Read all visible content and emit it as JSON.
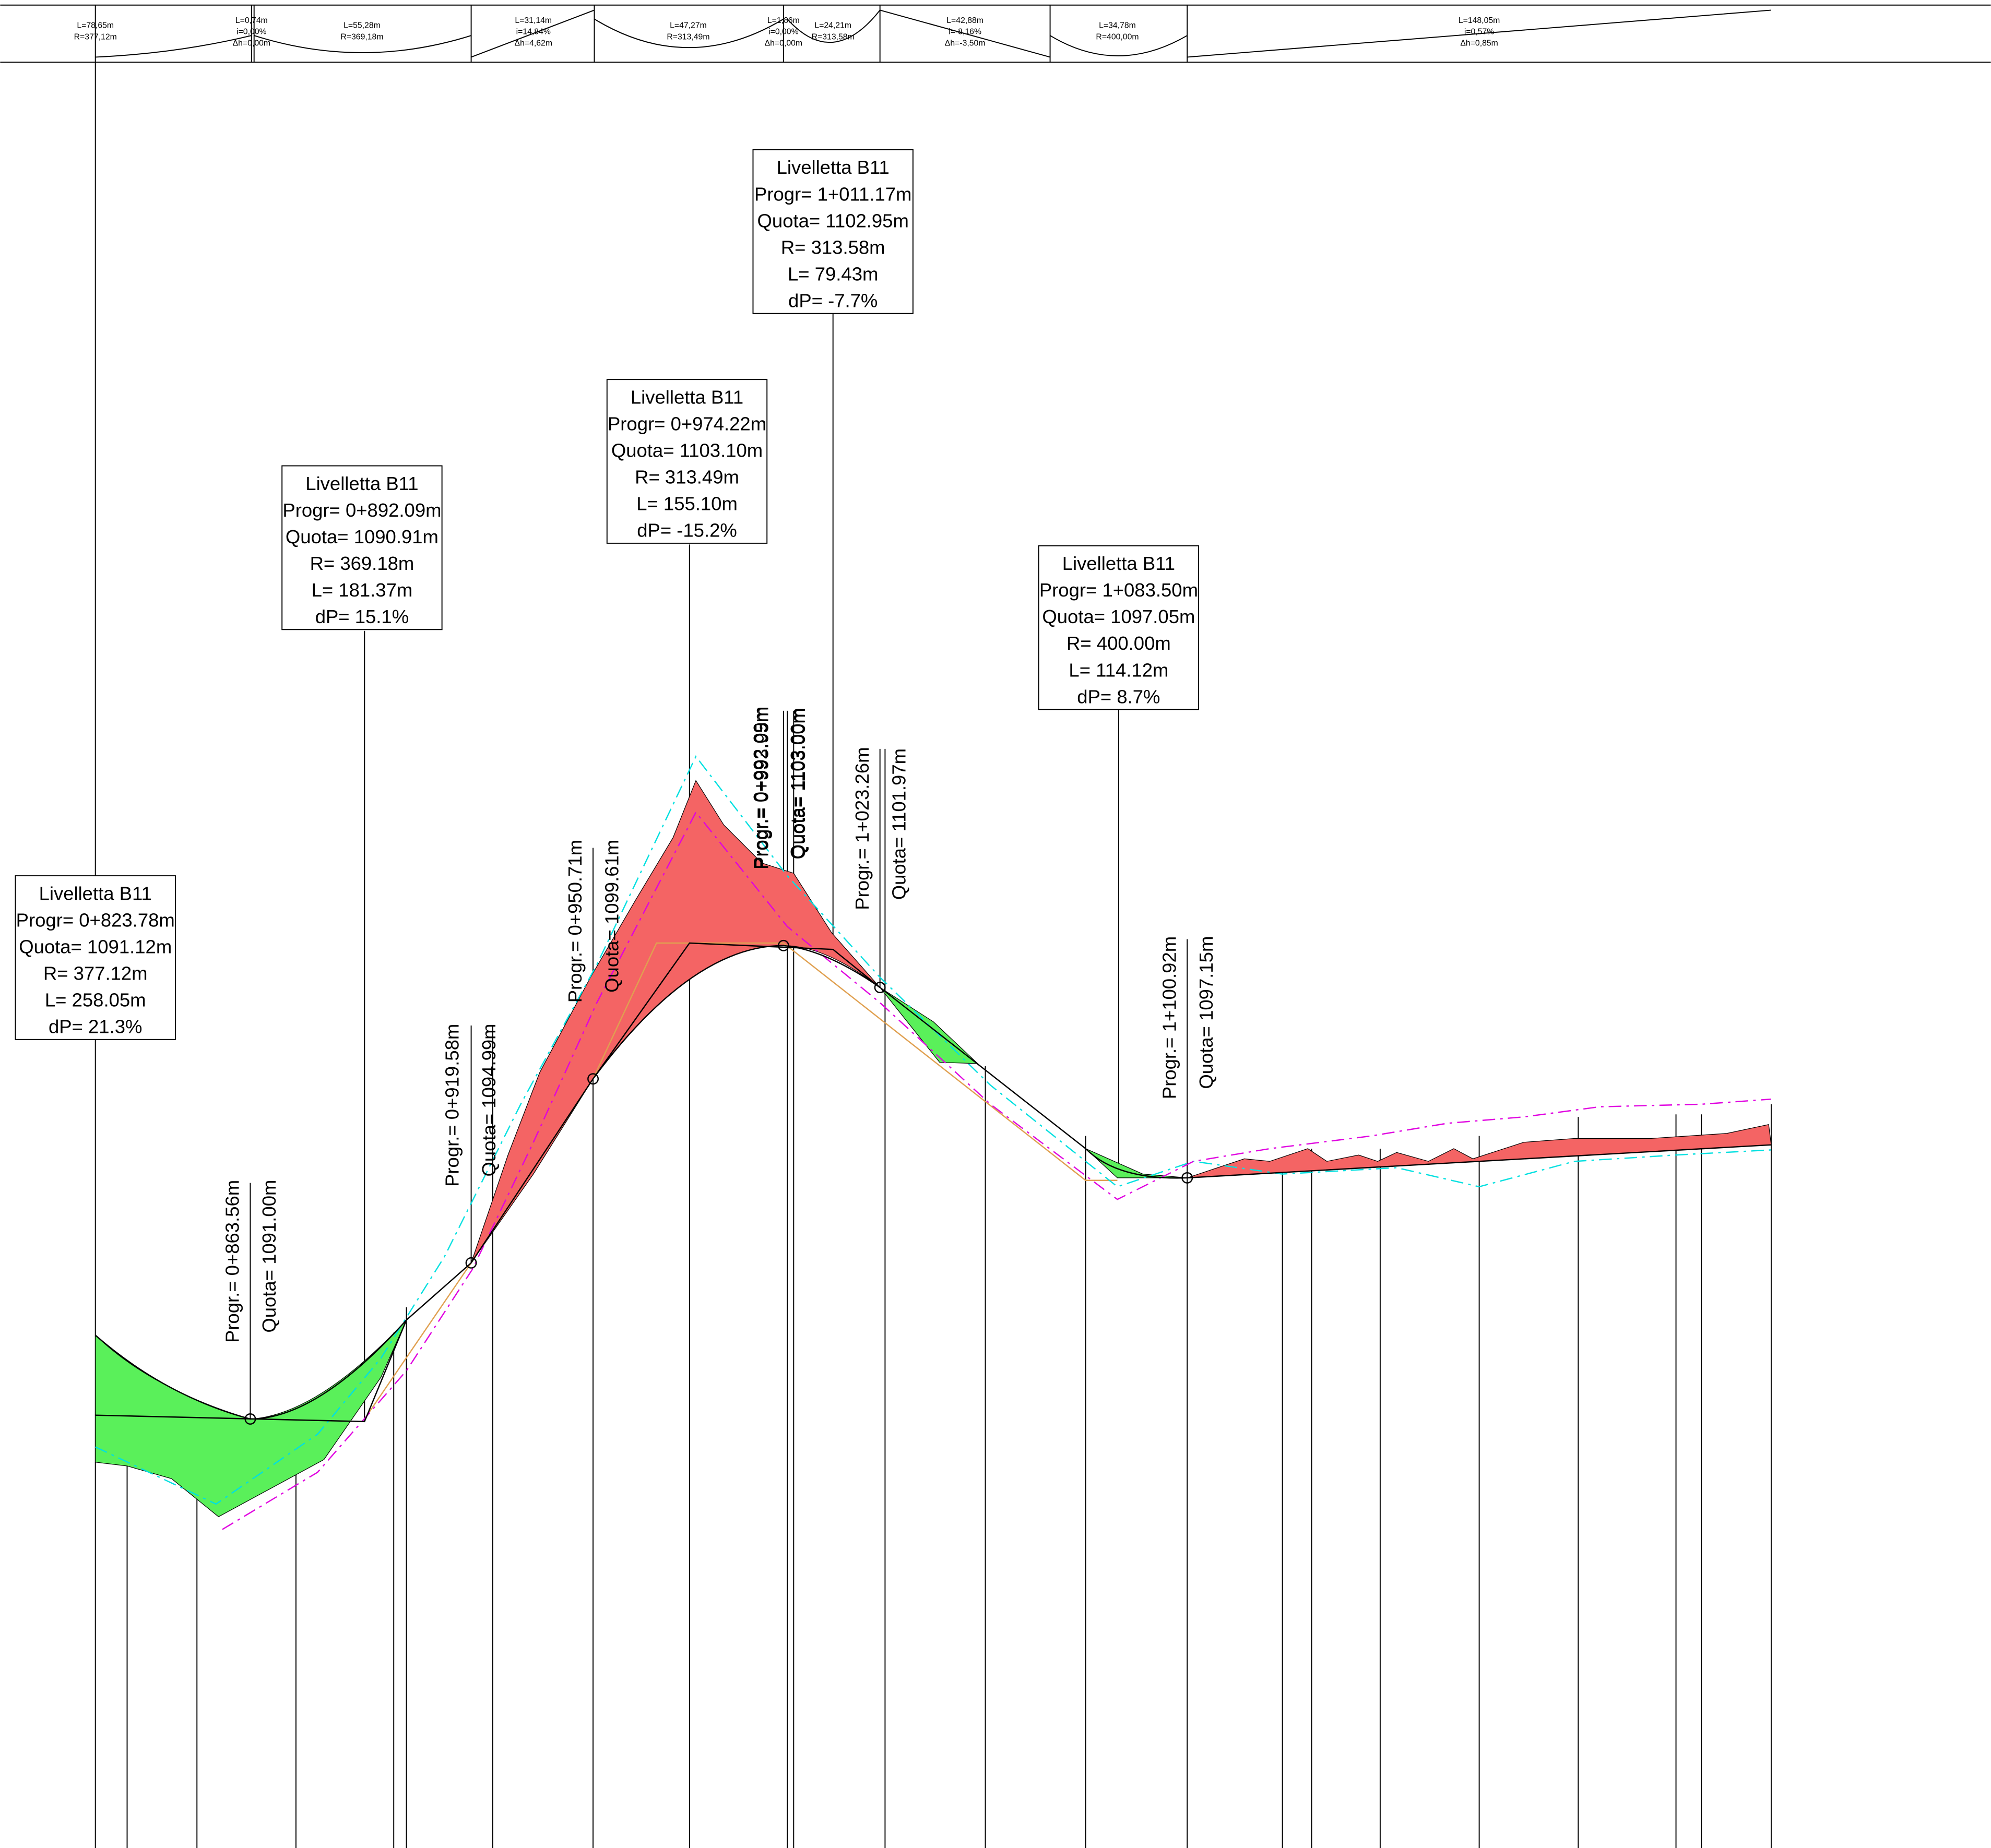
{
  "profile_band": {
    "segments": [
      {
        "lines": [
          "L=78,65m",
          "R=377,12m"
        ]
      },
      {
        "lines": [
          "L=0,74m",
          "i=0,00%",
          "Δh=0,00m"
        ]
      },
      {
        "lines": [
          "L=55,28m",
          "R=369,18m"
        ]
      },
      {
        "lines": [
          "L=31,14m",
          "i=14,84%",
          "Δh=4,62m"
        ]
      },
      {
        "lines": [
          "L=47,27m",
          "R=313,49m"
        ]
      },
      {
        "lines": [
          "L=1,86m",
          "i=0,00%",
          "Δh=0,00m"
        ]
      },
      {
        "lines": [
          "L=24,21m",
          "R=313,58m"
        ]
      },
      {
        "lines": [
          "L=42,88m",
          "i=-8,16%",
          "Δh=-3,50m"
        ]
      },
      {
        "lines": [
          "L=34,78m",
          "R=400,00m"
        ]
      },
      {
        "lines": [
          "L=148,05m",
          "i=0,57%",
          "Δh=0,85m"
        ]
      }
    ]
  },
  "labels": [
    {
      "lines": [
        "Livelletta B11",
        "Progr= 0+823.78m",
        "Quota= 1091.12m",
        "R= 377.12m",
        "L= 258.05m",
        "dP= 21.3%"
      ]
    },
    {
      "lines": [
        "Livelletta B11",
        "Progr= 0+892.09m",
        "Quota= 1090.91m",
        "R= 369.18m",
        "L= 181.37m",
        "dP= 15.1%"
      ]
    },
    {
      "lines": [
        "Livelletta B11",
        "Progr= 0+974.22m",
        "Quota= 1103.10m",
        "R= 313.49m",
        "L= 155.10m",
        "dP= -15.2%"
      ]
    },
    {
      "lines": [
        "Livelletta B11",
        "Progr= 1+011.17m",
        "Quota= 1102.95m",
        "R= 313.58m",
        "L= 79.43m",
        "dP= -7.7%"
      ]
    },
    {
      "lines": [
        "Livelletta B11",
        "Progr= 1+083.50m",
        "Quota= 1097.05m",
        "R= 400.00m",
        "L= 114.12m",
        "dP= 8.7%"
      ]
    }
  ],
  "stations": [
    {
      "progr": "Progr.= 0+863.56m",
      "quota": "Quota= 1091.00m"
    },
    {
      "progr": "Progr.= 0+919.58m",
      "quota": "Quota= 1094.99m"
    },
    {
      "progr": "Progr.= 0+950.71m",
      "quota": "Quota= 1099.61m"
    },
    {
      "progr": "Progr.= 0+992.09m",
      "quota": "Quota= 1103.00m"
    },
    {
      "progr": "Progr.= 0+993.95m",
      "quota": "Quota= 1103.00m"
    },
    {
      "progr": "Progr.= 1+023.26m",
      "quota": "Quota= 1101.97m"
    },
    {
      "progr": "Progr.= 1+100.92m",
      "quota": "Quota= 1097.15m"
    }
  ]
}
